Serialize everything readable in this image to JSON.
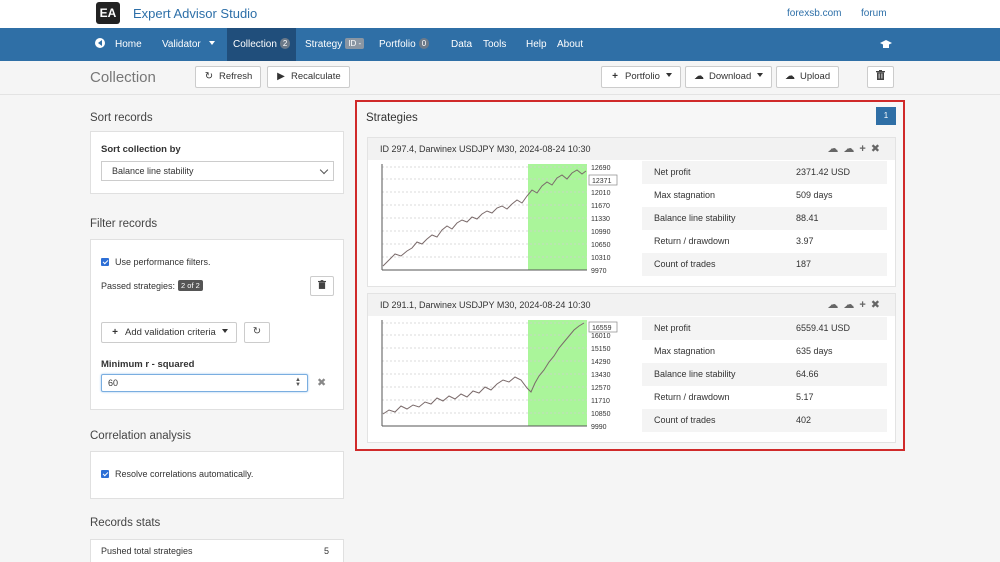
{
  "header": {
    "logo_text": "EA",
    "app_title": "Expert Advisor Studio",
    "links": [
      "forexsb.com",
      "forum"
    ]
  },
  "nav": {
    "home": "Home",
    "validator": "Validator",
    "collection": "Collection",
    "collection_badge": "2",
    "strategy": "Strategy",
    "strategy_badge": "ID -",
    "portfolio": "Portfolio",
    "portfolio_badge": "0",
    "data": "Data",
    "tools": "Tools",
    "help": "Help",
    "about": "About"
  },
  "toolbar": {
    "page_title": "Collection",
    "refresh": "Refresh",
    "recalculate": "Recalculate",
    "portfolio": "Portfolio",
    "download": "Download",
    "upload": "Upload"
  },
  "sort": {
    "title": "Sort records",
    "label": "Sort collection by",
    "selected": "Balance line stability"
  },
  "filter": {
    "title": "Filter records",
    "use_filters": "Use performance filters.",
    "passed_label": "Passed strategies:",
    "passed_badge": "2 of 2",
    "add_criteria": "Add validation criteria",
    "min_label": "Minimum r - squared",
    "min_value": "60"
  },
  "correlation": {
    "title": "Correlation analysis",
    "resolve": "Resolve correlations automatically."
  },
  "records_stats": {
    "title": "Records stats",
    "pushed_label": "Pushed total strategies",
    "pushed_value": "5"
  },
  "strategies": {
    "title": "Strategies",
    "page": "1",
    "cards": [
      {
        "id_line": "ID 297.4, Darwinex USDJPY M30, 2024-08-24 10:30",
        "y_ticks": [
          "12690",
          "12371",
          "12010",
          "11670",
          "11330",
          "10990",
          "10650",
          "10310",
          "9970"
        ],
        "highlight_tick": "12371",
        "stats": [
          {
            "label": "Net profit",
            "value": "2371.42 USD"
          },
          {
            "label": "Max stagnation",
            "value": "509 days"
          },
          {
            "label": "Balance line stability",
            "value": "88.41"
          },
          {
            "label": "Return / drawdown",
            "value": "3.97"
          },
          {
            "label": "Count of trades",
            "value": "187"
          }
        ]
      },
      {
        "id_line": "ID 291.1, Darwinex USDJPY M30, 2024-08-24 10:30",
        "y_ticks": [
          "16559",
          "16010",
          "15150",
          "14290",
          "13430",
          "12570",
          "11710",
          "10850",
          "9990"
        ],
        "highlight_tick": "16559",
        "stats": [
          {
            "label": "Net profit",
            "value": "6559.41 USD"
          },
          {
            "label": "Max stagnation",
            "value": "635 days"
          },
          {
            "label": "Balance line stability",
            "value": "64.66"
          },
          {
            "label": "Return / drawdown",
            "value": "5.17"
          },
          {
            "label": "Count of trades",
            "value": "402"
          }
        ]
      }
    ]
  },
  "colors": {
    "nav": "#2f6fa6",
    "nav_active": "#204e7b",
    "highlight_border": "#d02a2a",
    "oos_region": "#aaf59a"
  }
}
